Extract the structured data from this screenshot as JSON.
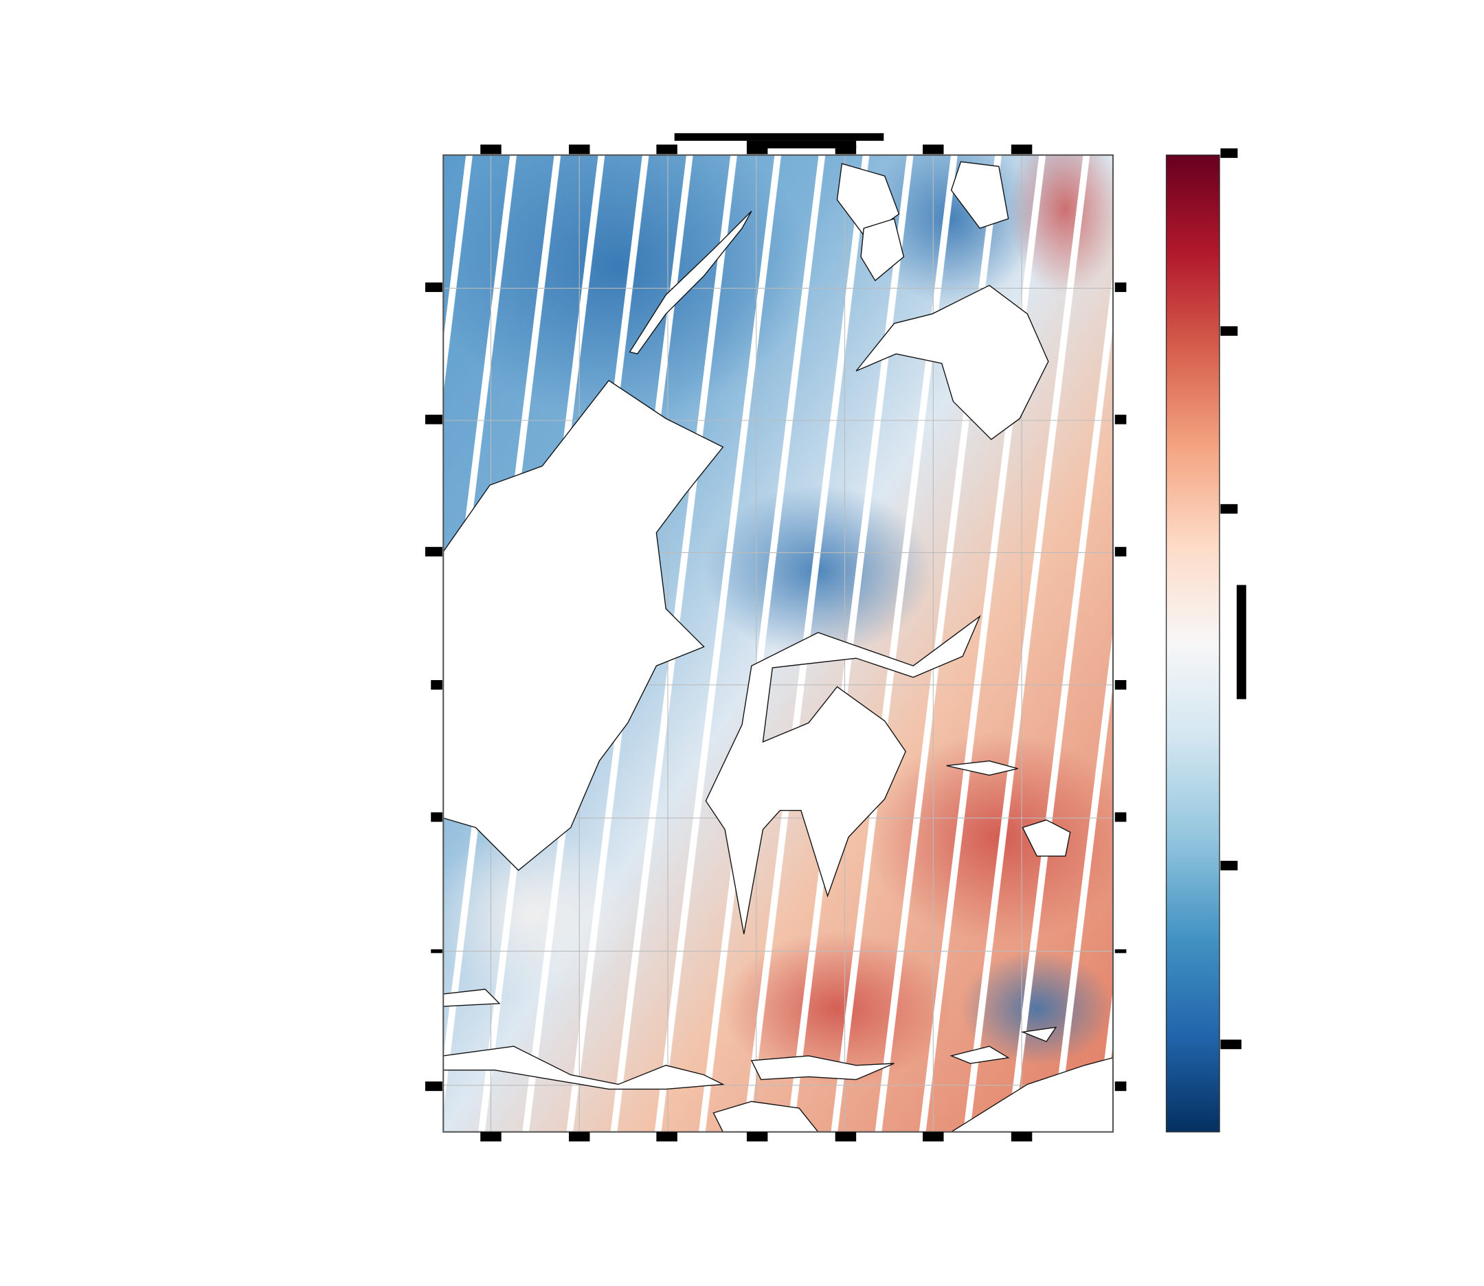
{
  "chart_data": {
    "type": "map"
  }
}
